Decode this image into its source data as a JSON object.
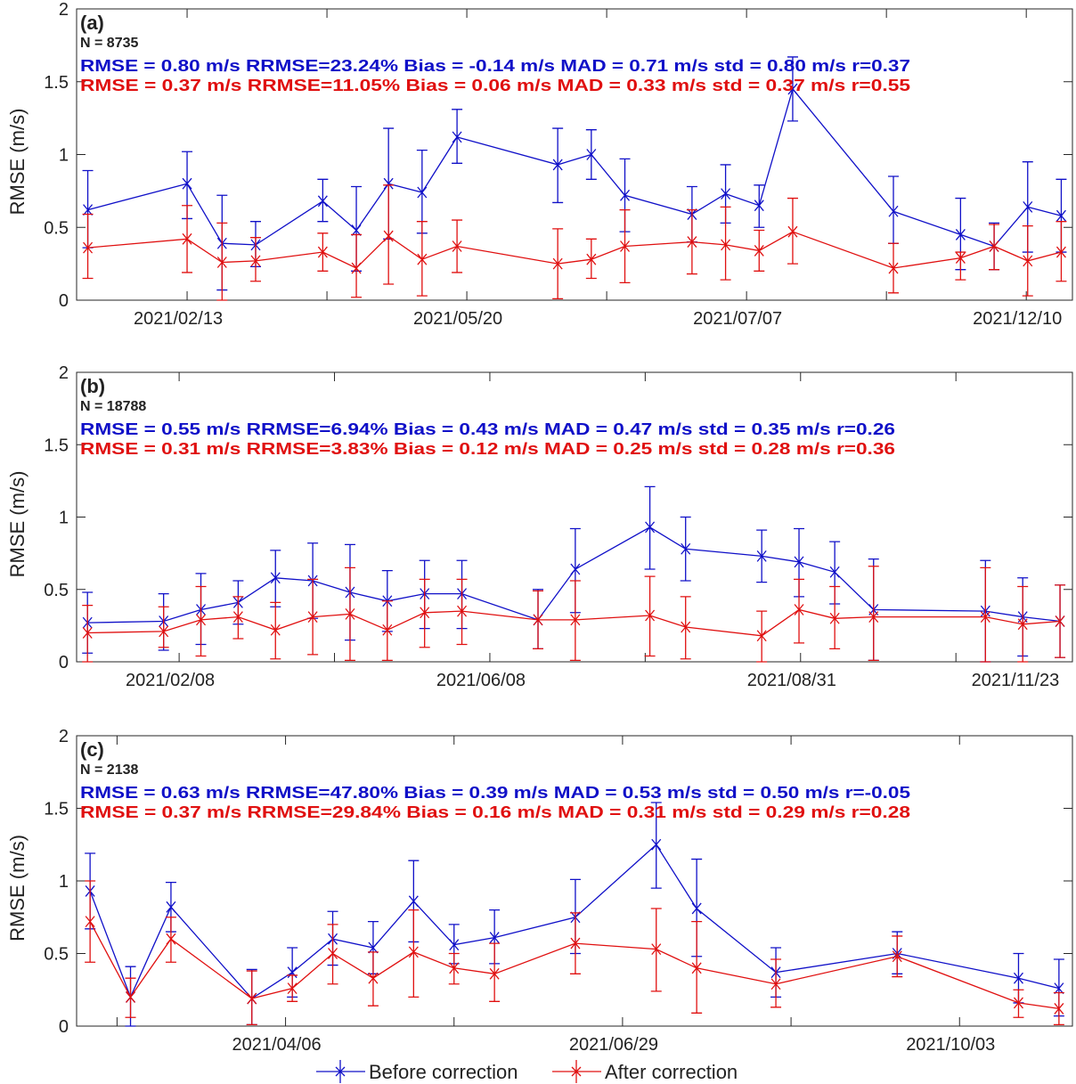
{
  "chart_data": [
    {
      "type": "line",
      "panel_label": "(a)",
      "annotations": [
        {
          "text": "N = 8735",
          "color": "#222222"
        },
        {
          "text": "RMSE = 0.80 m/s RRMSE=23.24% Bias = -0.14 m/s MAD = 0.71 m/s std = 0.80 m/s r=0.37",
          "color": "#1010c8"
        },
        {
          "text": "RMSE = 0.37 m/s RRMSE=11.05% Bias = 0.06 m/s MAD = 0.33 m/s std = 0.37 m/s r=0.55",
          "color": "#e01010"
        }
      ],
      "ylabel": "RMSE (m/s)",
      "ylim": [
        0,
        2
      ],
      "yticks": [
        "0",
        "0.5",
        "1",
        "1.5",
        "2"
      ],
      "xlim": [
        -0.79,
        6.33
      ],
      "xticks": [
        0,
        1,
        2,
        3,
        4,
        5,
        6
      ],
      "xticklabels": [
        {
          "at": 0,
          "label": "2021/02/13"
        },
        {
          "at": 2,
          "label": "2021/05/20"
        },
        {
          "at": 4,
          "label": "2021/07/07"
        },
        {
          "at": 6,
          "label": "2021/12/10"
        }
      ],
      "x": [
        -0.71,
        0,
        0.25,
        0.49,
        0.97,
        1.21,
        1.44,
        1.68,
        1.93,
        2.65,
        2.89,
        3.13,
        3.61,
        3.85,
        4.09,
        4.33,
        5.05,
        5.53,
        5.77,
        6.01,
        6.25
      ],
      "series": [
        {
          "name": "Before correction",
          "color": "#1010c8",
          "values": [
            0.62,
            0.8,
            0.39,
            0.38,
            0.68,
            0.48,
            0.8,
            0.74,
            1.12,
            0.93,
            1.0,
            0.72,
            0.59,
            0.73,
            0.65,
            1.45,
            0.61,
            0.45,
            0.37,
            0.64,
            0.58
          ],
          "lower": [
            0.36,
            0.56,
            0.07,
            0.23,
            0.54,
            0.2,
            0.42,
            0.46,
            0.94,
            0.67,
            0.83,
            0.47,
            0.4,
            0.53,
            0.5,
            1.23,
            0.39,
            0.21,
            0.21,
            0.33,
            0.33
          ],
          "upper": [
            0.89,
            1.02,
            0.72,
            0.54,
            0.83,
            0.78,
            1.18,
            1.03,
            1.31,
            1.18,
            1.17,
            0.97,
            0.78,
            0.93,
            0.79,
            1.67,
            0.85,
            0.7,
            0.53,
            0.95,
            0.83
          ]
        },
        {
          "name": "After correction",
          "color": "#e01010",
          "values": [
            0.36,
            0.42,
            0.26,
            0.27,
            0.33,
            0.22,
            0.44,
            0.28,
            0.37,
            0.25,
            0.28,
            0.37,
            0.4,
            0.38,
            0.34,
            0.47,
            0.22,
            0.29,
            0.37,
            0.27,
            0.33
          ],
          "lower": [
            0.15,
            0.19,
            0.0,
            0.13,
            0.2,
            0.02,
            0.11,
            0.03,
            0.19,
            0.01,
            0.15,
            0.12,
            0.18,
            0.14,
            0.2,
            0.25,
            0.05,
            0.14,
            0.21,
            0.03,
            0.13
          ],
          "upper": [
            0.59,
            0.65,
            0.53,
            0.43,
            0.46,
            0.45,
            0.79,
            0.54,
            0.55,
            0.49,
            0.42,
            0.62,
            0.62,
            0.64,
            0.48,
            0.7,
            0.39,
            0.33,
            0.52,
            0.51,
            0.54
          ]
        }
      ]
    },
    {
      "type": "line",
      "panel_label": "(b)",
      "annotations": [
        {
          "text": "N = 18788",
          "color": "#222222"
        },
        {
          "text": "RMSE = 0.55 m/s RRMSE=6.94% Bias = 0.43 m/s MAD = 0.47 m/s std = 0.35 m/s r=0.26",
          "color": "#1010c8"
        },
        {
          "text": "RMSE = 0.31 m/s RRMSE=3.83% Bias = 0.12 m/s MAD = 0.25 m/s std = 0.28 m/s r=0.36",
          "color": "#e01010"
        }
      ],
      "ylabel": "RMSE (m/s)",
      "ylim": [
        0,
        2
      ],
      "yticks": [
        "0",
        "0.5",
        "1",
        "1.5",
        "2"
      ],
      "xlim": [
        -0.66,
        5.75
      ],
      "xticks": [
        0,
        1,
        2,
        3,
        4,
        5
      ],
      "xticklabels": [
        {
          "at": 0,
          "label": "2021/02/08"
        },
        {
          "at": 2,
          "label": "2021/06/08"
        },
        {
          "at": 4,
          "label": "2021/08/31"
        },
        {
          "at": 5.44,
          "label": "2021/11/23"
        }
      ],
      "x": [
        -0.59,
        -0.1,
        0.14,
        0.38,
        0.62,
        0.86,
        1.1,
        1.34,
        1.58,
        1.82,
        2.31,
        2.55,
        3.03,
        3.26,
        3.75,
        3.99,
        4.22,
        4.47,
        5.19,
        5.43,
        5.67
      ],
      "series": [
        {
          "name": "Before correction",
          "color": "#1010c8",
          "values": [
            0.27,
            0.28,
            0.36,
            0.41,
            0.58,
            0.56,
            0.48,
            0.42,
            0.47,
            0.47,
            0.29,
            0.64,
            0.93,
            0.78,
            0.73,
            0.69,
            0.62,
            0.36,
            0.35,
            0.31,
            0.28
          ],
          "lower": [
            0.06,
            0.08,
            0.12,
            0.26,
            0.38,
            0.3,
            0.15,
            0.21,
            0.23,
            0.23,
            0.09,
            0.34,
            0.64,
            0.56,
            0.55,
            0.45,
            0.4,
            0.01,
            0.0,
            0.04,
            0.03
          ],
          "upper": [
            0.48,
            0.47,
            0.61,
            0.56,
            0.77,
            0.82,
            0.81,
            0.63,
            0.7,
            0.7,
            0.5,
            0.92,
            1.21,
            1.0,
            0.91,
            0.92,
            0.83,
            0.71,
            0.7,
            0.58,
            0.53
          ]
        },
        {
          "name": "After correction",
          "color": "#e01010",
          "values": [
            0.2,
            0.21,
            0.29,
            0.31,
            0.22,
            0.31,
            0.33,
            0.22,
            0.34,
            0.35,
            0.29,
            0.29,
            0.32,
            0.24,
            0.18,
            0.36,
            0.3,
            0.31,
            0.31,
            0.26,
            0.28
          ],
          "lower": [
            0.0,
            0.1,
            0.04,
            0.16,
            0.02,
            0.05,
            0.01,
            0.01,
            0.1,
            0.12,
            0.09,
            0.01,
            0.04,
            0.02,
            0.0,
            0.13,
            0.09,
            0.01,
            0.0,
            0.0,
            0.03
          ],
          "upper": [
            0.39,
            0.38,
            0.52,
            0.45,
            0.41,
            0.57,
            0.65,
            0.42,
            0.57,
            0.57,
            0.49,
            0.56,
            0.59,
            0.45,
            0.35,
            0.57,
            0.52,
            0.66,
            0.65,
            0.52,
            0.53
          ]
        }
      ]
    },
    {
      "type": "line",
      "panel_label": "(c)",
      "annotations": [
        {
          "text": "N = 2138",
          "color": "#222222"
        },
        {
          "text": "RMSE = 0.63 m/s RRMSE=47.80% Bias = 0.39 m/s MAD = 0.53 m/s std = 0.50 m/s r=-0.05",
          "color": "#1010c8"
        },
        {
          "text": "RMSE = 0.37 m/s RRMSE=29.84% Bias = 0.16 m/s MAD = 0.31 m/s std = 0.29 m/s r=0.28",
          "color": "#e01010"
        }
      ],
      "ylabel": "RMSE (m/s)",
      "ylim": [
        0,
        2
      ],
      "yticks": [
        "0",
        "0.5",
        "1",
        "1.5",
        "2"
      ],
      "xlim": [
        -0.24,
        5.67
      ],
      "xticks": [
        0,
        1,
        2,
        3,
        4,
        5
      ],
      "xticklabels": [
        {
          "at": 1,
          "label": "2021/04/06"
        },
        {
          "at": 3,
          "label": "2021/06/29"
        },
        {
          "at": 5,
          "label": "2021/10/03"
        }
      ],
      "x": [
        -0.16,
        0.08,
        0.32,
        0.8,
        1.04,
        1.28,
        1.52,
        1.76,
        2.0,
        2.24,
        2.72,
        3.2,
        3.44,
        3.91,
        4.63,
        5.35,
        5.59
      ],
      "series": [
        {
          "name": "Before correction",
          "color": "#1010c8",
          "values": [
            0.93,
            0.2,
            0.82,
            0.19,
            0.37,
            0.6,
            0.54,
            0.86,
            0.56,
            0.61,
            0.75,
            1.25,
            0.81,
            0.37,
            0.5,
            0.33,
            0.26
          ],
          "lower": [
            0.67,
            0.0,
            0.65,
            0.01,
            0.2,
            0.42,
            0.36,
            0.58,
            0.43,
            0.43,
            0.5,
            0.95,
            0.48,
            0.2,
            0.36,
            0.16,
            0.07
          ],
          "upper": [
            1.19,
            0.41,
            0.99,
            0.39,
            0.54,
            0.79,
            0.72,
            1.14,
            0.7,
            0.8,
            1.01,
            1.54,
            1.15,
            0.54,
            0.65,
            0.5,
            0.46
          ]
        },
        {
          "name": "After correction",
          "color": "#e01010",
          "values": [
            0.72,
            0.2,
            0.6,
            0.19,
            0.26,
            0.5,
            0.33,
            0.51,
            0.4,
            0.36,
            0.57,
            0.53,
            0.4,
            0.29,
            0.48,
            0.16,
            0.12
          ],
          "lower": [
            0.44,
            0.06,
            0.44,
            0.01,
            0.17,
            0.29,
            0.14,
            0.2,
            0.29,
            0.17,
            0.36,
            0.24,
            0.09,
            0.13,
            0.34,
            0.06,
            0.01
          ],
          "upper": [
            1.0,
            0.33,
            0.75,
            0.38,
            0.35,
            0.7,
            0.51,
            0.8,
            0.5,
            0.57,
            0.78,
            0.81,
            0.72,
            0.46,
            0.62,
            0.25,
            0.23
          ]
        }
      ]
    }
  ],
  "legend": {
    "placement": "bottom",
    "items": [
      {
        "label": "Before correction",
        "color": "#1010c8"
      },
      {
        "label": "After correction",
        "color": "#e01010"
      }
    ]
  }
}
